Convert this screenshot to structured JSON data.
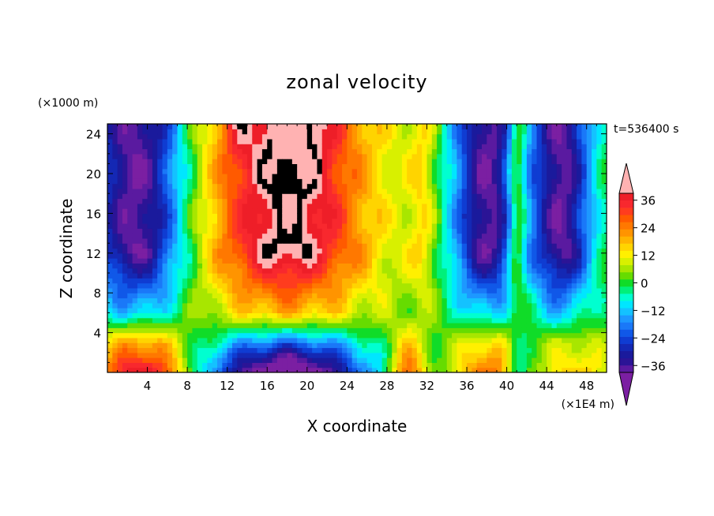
{
  "chart_data": {
    "type": "heatmap",
    "title": "zonal velocity",
    "xlabel": "X coordinate",
    "ylabel": "Z coordinate",
    "x_units": "(×1E4 m)",
    "y_units": "(×1000 m)",
    "time_label": "t=536400 s",
    "xlim": [
      0,
      50
    ],
    "ylim": [
      0,
      25
    ],
    "x_ticks": [
      4,
      8,
      12,
      16,
      20,
      24,
      28,
      32,
      36,
      40,
      44,
      48
    ],
    "y_ticks": [
      4,
      8,
      12,
      16,
      20,
      24
    ],
    "colorbar": {
      "levels": [
        -42,
        -39,
        -36,
        -33,
        -30,
        -27,
        -24,
        -21,
        -18,
        -15,
        -12,
        -9,
        -6,
        -3,
        0,
        3,
        6,
        9,
        12,
        15,
        18,
        21,
        24,
        27,
        30,
        33,
        36,
        39,
        42
      ],
      "tick_values": [
        -36,
        -24,
        -12,
        0,
        12,
        24,
        36
      ],
      "colors": [
        "#7b1fa2",
        "#5a1aa0",
        "#2b1496",
        "#1a1a9c",
        "#1428b4",
        "#0f3cd2",
        "#1058e8",
        "#1a78f8",
        "#1d98ff",
        "#14c2ff",
        "#00e6ff",
        "#00ffd0",
        "#00f07a",
        "#10dc28",
        "#66dc00",
        "#a8e600",
        "#d8f000",
        "#fff000",
        "#ffd400",
        "#ffb400",
        "#ff9400",
        "#ff7800",
        "#ff5a00",
        "#ff3c1e",
        "#f8282e",
        "#ee1e28",
        "#ffb2b2"
      ]
    },
    "field_summary": "Westward (negative) flow in x 0–8 and x 34–50 above 12 km; strong eastward (positive) jet x 9–28 peaking above 36 at 20 km; positive near-surface flow x 0–8; negative near-surface flow x 9–28."
  }
}
